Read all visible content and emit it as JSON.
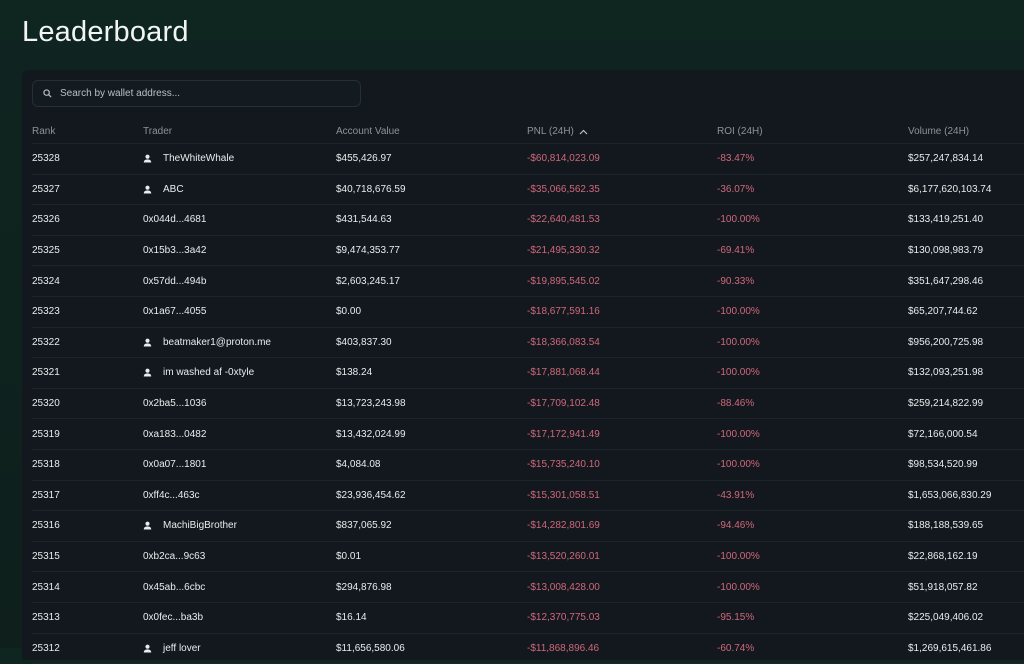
{
  "page": {
    "title": "Leaderboard"
  },
  "search": {
    "placeholder": "Search by wallet address...",
    "value": ""
  },
  "colors": {
    "negative": "#d0687a",
    "background": "#0f2520",
    "panel": "#12181d"
  },
  "table": {
    "columns": [
      "Rank",
      "Trader",
      "Account Value",
      "PNL (24H)",
      "ROI (24H)",
      "Volume (24H)"
    ],
    "sort": {
      "column": "PNL (24H)",
      "direction": "ascending",
      "icon": "chevron-up-icon"
    },
    "rows": [
      {
        "rank": "25328",
        "trader": "TheWhiteWhale",
        "named": true,
        "account_value": "$455,426.97",
        "pnl": "-$60,814,023.09",
        "roi": "-83.47%",
        "volume": "$257,247,834.14"
      },
      {
        "rank": "25327",
        "trader": "ABC",
        "named": true,
        "account_value": "$40,718,676.59",
        "pnl": "-$35,066,562.35",
        "roi": "-36.07%",
        "volume": "$6,177,620,103.74"
      },
      {
        "rank": "25326",
        "trader": "0x044d...4681",
        "named": false,
        "account_value": "$431,544.63",
        "pnl": "-$22,640,481.53",
        "roi": "-100.00%",
        "volume": "$133,419,251.40"
      },
      {
        "rank": "25325",
        "trader": "0x15b3...3a42",
        "named": false,
        "account_value": "$9,474,353.77",
        "pnl": "-$21,495,330.32",
        "roi": "-69.41%",
        "volume": "$130,098,983.79"
      },
      {
        "rank": "25324",
        "trader": "0x57dd...494b",
        "named": false,
        "account_value": "$2,603,245.17",
        "pnl": "-$19,895,545.02",
        "roi": "-90.33%",
        "volume": "$351,647,298.46"
      },
      {
        "rank": "25323",
        "trader": "0x1a67...4055",
        "named": false,
        "account_value": "$0.00",
        "pnl": "-$18,677,591.16",
        "roi": "-100.00%",
        "volume": "$65,207,744.62"
      },
      {
        "rank": "25322",
        "trader": "beatmaker1@proton.me",
        "named": true,
        "account_value": "$403,837.30",
        "pnl": "-$18,366,083.54",
        "roi": "-100.00%",
        "volume": "$956,200,725.98"
      },
      {
        "rank": "25321",
        "trader": "im washed af -0xtyle",
        "named": true,
        "account_value": "$138.24",
        "pnl": "-$17,881,068.44",
        "roi": "-100.00%",
        "volume": "$132,093,251.98"
      },
      {
        "rank": "25320",
        "trader": "0x2ba5...1036",
        "named": false,
        "account_value": "$13,723,243.98",
        "pnl": "-$17,709,102.48",
        "roi": "-88.46%",
        "volume": "$259,214,822.99"
      },
      {
        "rank": "25319",
        "trader": "0xa183...0482",
        "named": false,
        "account_value": "$13,432,024.99",
        "pnl": "-$17,172,941.49",
        "roi": "-100.00%",
        "volume": "$72,166,000.54"
      },
      {
        "rank": "25318",
        "trader": "0x0a07...1801",
        "named": false,
        "account_value": "$4,084.08",
        "pnl": "-$15,735,240.10",
        "roi": "-100.00%",
        "volume": "$98,534,520.99"
      },
      {
        "rank": "25317",
        "trader": "0xff4c...463c",
        "named": false,
        "account_value": "$23,936,454.62",
        "pnl": "-$15,301,058.51",
        "roi": "-43.91%",
        "volume": "$1,653,066,830.29"
      },
      {
        "rank": "25316",
        "trader": "MachiBigBrother",
        "named": true,
        "account_value": "$837,065.92",
        "pnl": "-$14,282,801.69",
        "roi": "-94.46%",
        "volume": "$188,188,539.65"
      },
      {
        "rank": "25315",
        "trader": "0xb2ca...9c63",
        "named": false,
        "account_value": "$0.01",
        "pnl": "-$13,520,260.01",
        "roi": "-100.00%",
        "volume": "$22,868,162.19"
      },
      {
        "rank": "25314",
        "trader": "0x45ab...6cbc",
        "named": false,
        "account_value": "$294,876.98",
        "pnl": "-$13,008,428.00",
        "roi": "-100.00%",
        "volume": "$51,918,057.82"
      },
      {
        "rank": "25313",
        "trader": "0x0fec...ba3b",
        "named": false,
        "account_value": "$16.14",
        "pnl": "-$12,370,775.03",
        "roi": "-95.15%",
        "volume": "$225,049,406.02"
      },
      {
        "rank": "25312",
        "trader": "jeff lover",
        "named": true,
        "account_value": "$11,656,580.06",
        "pnl": "-$11,868,896.46",
        "roi": "-60.74%",
        "volume": "$1,269,615,461.86"
      }
    ]
  }
}
